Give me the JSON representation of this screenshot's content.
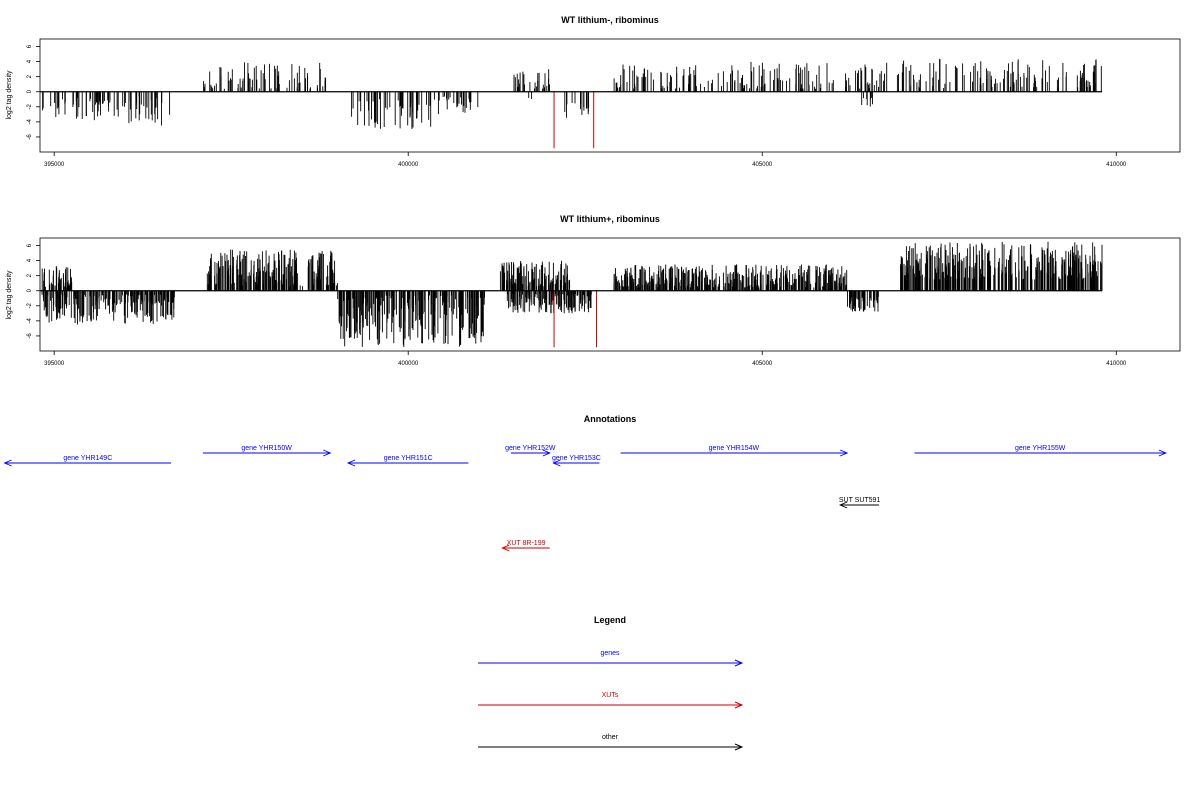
{
  "chart_data": [
    {
      "type": "bar",
      "title": "WT lithium-, ribominus",
      "ylabel": "log2 tag density",
      "xlabel": "",
      "xlim": [
        394800,
        410900
      ],
      "ylim": [
        -8,
        7
      ],
      "yticks": [
        -6,
        -4,
        -2,
        0,
        2,
        4,
        6
      ],
      "xticks": [
        395000,
        400000,
        405000,
        410000
      ],
      "baseline": [
        394800,
        409800
      ],
      "series": [
        {
          "strand": "minus",
          "color": "#000000",
          "density": 0.6,
          "segments": [
            {
              "start": 394820,
              "end": 396000,
              "min": 0.8,
              "max": 3.8
            },
            {
              "start": 396000,
              "end": 396650,
              "min": 0.6,
              "max": 4.5
            },
            {
              "start": 399170,
              "end": 400400,
              "min": 1.0,
              "max": 5.0
            },
            {
              "start": 400400,
              "end": 401000,
              "min": 0.6,
              "max": 3.0
            },
            {
              "start": 401700,
              "end": 401750,
              "min": 0.8,
              "max": 1.2
            },
            {
              "start": 402200,
              "end": 402550,
              "min": 1.5,
              "max": 3.5
            },
            {
              "start": 406400,
              "end": 406600,
              "min": 0.8,
              "max": 2.0
            }
          ]
        },
        {
          "strand": "plus",
          "color": "#000000",
          "density": 0.6,
          "segments": [
            {
              "start": 397100,
              "end": 398900,
              "min": 0.4,
              "max": 4.0
            },
            {
              "start": 401450,
              "end": 402050,
              "min": 0.4,
              "max": 3.0
            },
            {
              "start": 402900,
              "end": 406800,
              "min": 0.4,
              "max": 4.0
            },
            {
              "start": 406900,
              "end": 409800,
              "min": 0.5,
              "max": 4.5
            }
          ]
        },
        {
          "strand": "minus",
          "color": "#cc0000",
          "density": 0,
          "bars": [
            {
              "x": 402060,
              "value": -7.5
            },
            {
              "x": 402620,
              "value": -7.5
            }
          ]
        }
      ]
    },
    {
      "type": "bar",
      "title": "WT lithium+, ribominus",
      "ylabel": "log2 tag density",
      "xlabel": "",
      "xlim": [
        394800,
        410900
      ],
      "ylim": [
        -8,
        7
      ],
      "yticks": [
        -6,
        -4,
        -2,
        0,
        2,
        4,
        6
      ],
      "xticks": [
        395000,
        400000,
        405000,
        410000
      ],
      "baseline": [
        394800,
        409800
      ],
      "series": [
        {
          "strand": "minus",
          "color": "#000000",
          "density": 1.6,
          "segments": [
            {
              "start": 394820,
              "end": 396700,
              "min": 0.5,
              "max": 4.5
            },
            {
              "start": 399000,
              "end": 401100,
              "min": 0.6,
              "max": 7.5
            },
            {
              "start": 401400,
              "end": 402600,
              "min": 0.4,
              "max": 3.0
            },
            {
              "start": 406200,
              "end": 406650,
              "min": 0.8,
              "max": 2.8
            }
          ]
        },
        {
          "strand": "plus",
          "color": "#000000",
          "density": 1.7,
          "segments": [
            {
              "start": 394820,
              "end": 395250,
              "min": 0.4,
              "max": 3.5
            },
            {
              "start": 397150,
              "end": 399000,
              "min": 0.6,
              "max": 5.5
            },
            {
              "start": 401300,
              "end": 402300,
              "min": 0.6,
              "max": 4.0
            },
            {
              "start": 402900,
              "end": 406200,
              "min": 0.4,
              "max": 3.5
            },
            {
              "start": 406950,
              "end": 409800,
              "min": 1.5,
              "max": 6.5
            }
          ]
        },
        {
          "strand": "minus",
          "color": "#cc0000",
          "density": 0,
          "bars": [
            {
              "x": 402060,
              "value": -7.5
            },
            {
              "x": 402660,
              "value": -7.5
            }
          ]
        }
      ]
    }
  ],
  "annotations": {
    "title": "Annotations",
    "genes_color": "#0000ff",
    "xuts_color": "#cc0000",
    "other_color": "#000000",
    "items": [
      {
        "label": "gene YHR149C",
        "kind": "genes",
        "direction": "left",
        "start": 394300,
        "end": 396650,
        "row": 1
      },
      {
        "label": "gene YHR150W",
        "kind": "genes",
        "direction": "right",
        "start": 397100,
        "end": 398900,
        "row": 0
      },
      {
        "label": "gene YHR151C",
        "kind": "genes",
        "direction": "left",
        "start": 399150,
        "end": 400850,
        "row": 1
      },
      {
        "label": "gene YHR152W",
        "kind": "genes",
        "direction": "right",
        "start": 401450,
        "end": 402000,
        "row": 0
      },
      {
        "label": "gene YHR153C",
        "kind": "genes",
        "direction": "left",
        "start": 402050,
        "end": 402700,
        "row": 1
      },
      {
        "label": "gene YHR154W",
        "kind": "genes",
        "direction": "right",
        "start": 403000,
        "end": 406200,
        "row": 0
      },
      {
        "label": "gene YHR155W",
        "kind": "genes",
        "direction": "right",
        "start": 407150,
        "end": 410700,
        "row": 0
      },
      {
        "label": "SUT SUT591",
        "kind": "other",
        "direction": "left",
        "start": 406100,
        "end": 406650,
        "row": 2
      },
      {
        "label": "XUT 8R-199",
        "kind": "xuts",
        "direction": "left",
        "start": 401330,
        "end": 402000,
        "row": 3
      }
    ]
  },
  "legend": {
    "title": "Legend",
    "items": [
      {
        "label": "genes",
        "color": "#0000ff"
      },
      {
        "label": "XUTs",
        "color": "#cc0000"
      },
      {
        "label": "other",
        "color": "#000000"
      }
    ]
  }
}
